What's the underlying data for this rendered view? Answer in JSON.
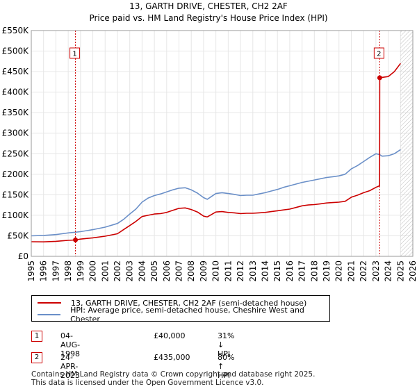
{
  "chart_data": {
    "type": "line",
    "title": "13, GARTH DRIVE, CHESTER, CH2 2AF",
    "subtitle": "Price paid vs. HM Land Registry's House Price Index (HPI)",
    "ylim": [
      0,
      550000
    ],
    "xlim": [
      1995,
      2026
    ],
    "y_ticks": [
      0,
      50000,
      100000,
      150000,
      200000,
      250000,
      300000,
      350000,
      400000,
      450000,
      500000,
      550000
    ],
    "y_tick_labels": [
      "£0",
      "£50K",
      "£100K",
      "£150K",
      "£200K",
      "£250K",
      "£300K",
      "£350K",
      "£400K",
      "£450K",
      "£500K",
      "£550K"
    ],
    "x_ticks": [
      1995,
      1996,
      1997,
      1998,
      1999,
      2000,
      2001,
      2002,
      2003,
      2004,
      2005,
      2006,
      2007,
      2008,
      2009,
      2010,
      2011,
      2012,
      2013,
      2014,
      2015,
      2016,
      2017,
      2018,
      2019,
      2020,
      2021,
      2022,
      2023,
      2024,
      2025,
      2026
    ],
    "grid": true,
    "forecast_from": 2025.0,
    "series": [
      {
        "name": "13, GARTH DRIVE, CHESTER, CH2 2AF (semi-detached house)",
        "color": "#cc0000",
        "x": [
          1995.0,
          1996.0,
          1997.0,
          1997.5,
          1998.0,
          1998.59,
          1999.0,
          2000.0,
          2001.0,
          2002.0,
          2002.5,
          2003.0,
          2003.5,
          2004.0,
          2004.5,
          2005.0,
          2005.5,
          2006.0,
          2006.5,
          2007.0,
          2007.5,
          2008.0,
          2008.5,
          2009.0,
          2009.3,
          2010.0,
          2010.5,
          2011.0,
          2011.5,
          2012.0,
          2012.5,
          2013.0,
          2013.5,
          2014.0,
          2014.5,
          2015.0,
          2015.5,
          2016.0,
          2016.5,
          2017.0,
          2017.5,
          2018.0,
          2018.5,
          2019.0,
          2019.5,
          2020.0,
          2020.5,
          2021.0,
          2021.5,
          2022.0,
          2022.5,
          2023.0,
          2023.3,
          2023.31,
          2023.5,
          2024.0,
          2024.5,
          2025.0
        ],
        "y": [
          35500,
          35200,
          36500,
          37800,
          39000,
          40000,
          42000,
          45000,
          49000,
          55000,
          65000,
          75000,
          85000,
          97000,
          100000,
          103000,
          104000,
          107000,
          112000,
          117000,
          118000,
          114000,
          108000,
          98000,
          96000,
          108000,
          109000,
          107000,
          106000,
          104000,
          105000,
          105000,
          106000,
          107000,
          109000,
          111000,
          113000,
          115000,
          119000,
          123000,
          125000,
          126000,
          128000,
          130000,
          131000,
          132000,
          134000,
          144000,
          149000,
          155000,
          160000,
          168000,
          172000,
          435000,
          436000,
          438000,
          450000,
          470000
        ]
      },
      {
        "name": "HPI: Average price, semi-detached house, Cheshire West and Chester",
        "color": "#6a8fc8",
        "x": [
          1995.0,
          1996.0,
          1997.0,
          1997.5,
          1998.0,
          1998.5,
          1999.0,
          2000.0,
          2001.0,
          2002.0,
          2002.5,
          2003.0,
          2003.5,
          2004.0,
          2004.5,
          2005.0,
          2005.5,
          2006.0,
          2006.5,
          2007.0,
          2007.5,
          2008.0,
          2008.5,
          2009.0,
          2009.3,
          2010.0,
          2010.5,
          2011.0,
          2011.5,
          2012.0,
          2012.5,
          2013.0,
          2013.5,
          2014.0,
          2014.5,
          2015.0,
          2015.5,
          2016.0,
          2016.5,
          2017.0,
          2017.5,
          2018.0,
          2018.5,
          2019.0,
          2019.5,
          2020.0,
          2020.5,
          2021.0,
          2021.5,
          2022.0,
          2022.5,
          2023.0,
          2023.3,
          2023.5,
          2024.0,
          2024.5,
          2025.0
        ],
        "y": [
          50000,
          51000,
          53000,
          55000,
          57000,
          58500,
          60000,
          65000,
          71000,
          80000,
          90000,
          103000,
          115000,
          132000,
          142000,
          148000,
          152000,
          157000,
          162000,
          166000,
          167000,
          162000,
          154000,
          143000,
          139000,
          153000,
          155000,
          153000,
          151000,
          148000,
          149000,
          149000,
          152000,
          155000,
          159000,
          163000,
          168000,
          172000,
          176000,
          180000,
          183000,
          186000,
          189000,
          192000,
          194000,
          196000,
          200000,
          213000,
          221000,
          231000,
          241000,
          250000,
          248000,
          244000,
          245000,
          250000,
          260000
        ]
      }
    ],
    "annotations": [
      {
        "label": "1",
        "x": 1998.59,
        "y": 40000
      },
      {
        "label": "2",
        "x": 2023.31,
        "y": 435000
      }
    ]
  },
  "legend": {
    "price_paid": "13, GARTH DRIVE, CHESTER, CH2 2AF (semi-detached house)",
    "hpi": "HPI: Average price, semi-detached house, Cheshire West and Chester"
  },
  "transactions": [
    {
      "num": "1",
      "date": "04-AUG-1998",
      "price": "£40,000",
      "hpi": "31% ↓ HPI"
    },
    {
      "num": "2",
      "date": "24-APR-2023",
      "price": "£435,000",
      "hpi": "80% ↑ HPI"
    }
  ],
  "footer": {
    "line1": "Contains HM Land Registry data © Crown copyright and database right 2025.",
    "line2": "This data is licensed under the Open Government Licence v3.0."
  },
  "colors": {
    "red": "#cc0000",
    "blue": "#6a8fc8",
    "grid": "#e6e6e6",
    "plot_bg": "#ffffff"
  }
}
